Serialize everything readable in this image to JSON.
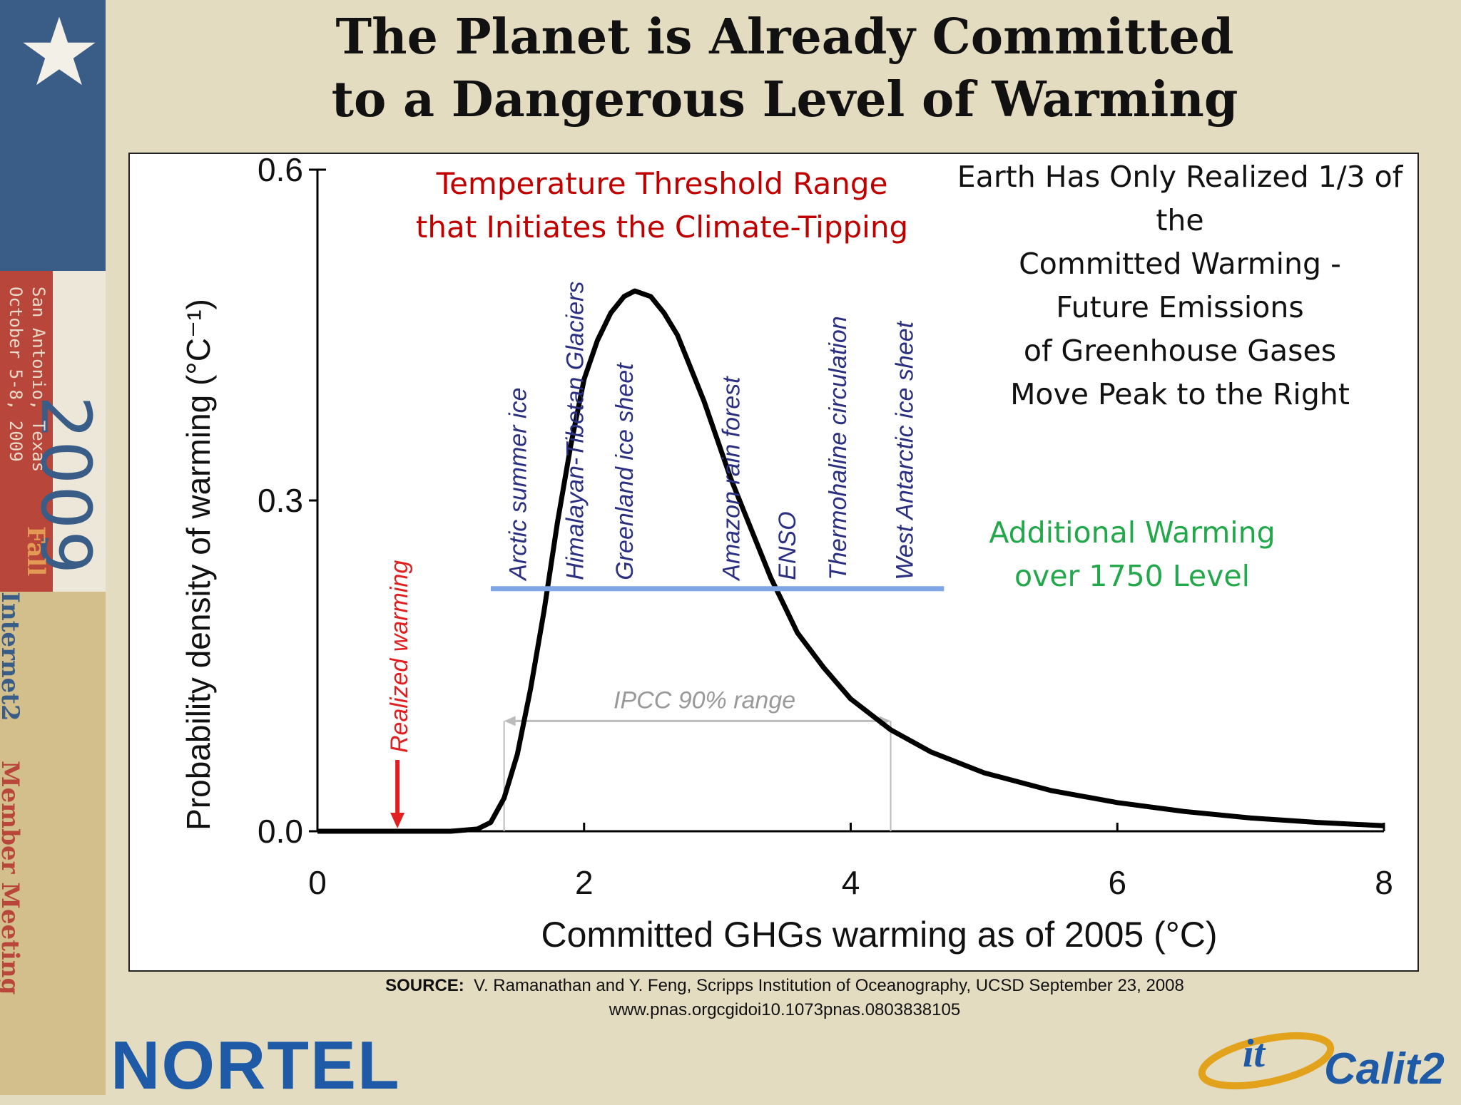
{
  "slide": {
    "title_line1": "The Planet is Already Committed",
    "title_line2": "to a Dangerous Level of Warming",
    "source_label": "SOURCE:",
    "source_text": "V. Ramanathan and Y. Feng, Scripps Institution of Oceanography, UCSD September 23, 2008",
    "source_url": "www.pnas.orgcgidoi10.1073pnas.0803838105",
    "logo_left": "NORTEL",
    "logo_right_it": "it",
    "logo_right": "Calit2"
  },
  "banner": {
    "year": "2009",
    "season": "Fall",
    "city": "San Antonio, Texas",
    "dates": "October 5-8, 2009",
    "meeting_part1": "Internet2",
    "meeting_part2": "Member Meeting",
    "colors": {
      "blue": "#3a5d87",
      "red": "#b8463b",
      "tan": "#d3bf8c"
    }
  },
  "chart_data": {
    "type": "line",
    "title": "",
    "xlabel": "Committed GHGs warming as of 2005 (°C)",
    "ylabel": "Probability density of warming (°C⁻¹)",
    "xlim": [
      0,
      8
    ],
    "ylim": [
      0,
      0.6
    ],
    "x_ticks": [
      0,
      2,
      4,
      6,
      8
    ],
    "y_ticks": [
      0.0,
      0.3,
      0.6
    ],
    "x_tick_labels": [
      "0",
      "2",
      "4",
      "6",
      "8"
    ],
    "y_tick_labels": [
      "0.0",
      "0.3",
      "0.6"
    ],
    "grid": false,
    "series": [
      {
        "color": "#000000",
        "x": [
          0,
          0.6,
          1.0,
          1.2,
          1.3,
          1.4,
          1.5,
          1.6,
          1.7,
          1.8,
          1.9,
          2.0,
          2.1,
          2.2,
          2.3,
          2.38,
          2.5,
          2.6,
          2.7,
          2.8,
          2.9,
          3.0,
          3.1,
          3.2,
          3.3,
          3.4,
          3.5,
          3.6,
          3.8,
          4.0,
          4.3,
          4.6,
          5.0,
          5.5,
          6.0,
          6.5,
          7.0,
          7.5,
          8.0
        ],
        "y": [
          0,
          0,
          0,
          0.002,
          0.008,
          0.03,
          0.07,
          0.13,
          0.2,
          0.28,
          0.35,
          0.41,
          0.445,
          0.47,
          0.485,
          0.49,
          0.485,
          0.47,
          0.45,
          0.42,
          0.39,
          0.355,
          0.32,
          0.29,
          0.26,
          0.23,
          0.205,
          0.18,
          0.148,
          0.12,
          0.092,
          0.072,
          0.053,
          0.037,
          0.026,
          0.018,
          0.012,
          0.008,
          0.005
        ]
      }
    ],
    "realized_warming": {
      "x": 0.6,
      "label": "Realized warming",
      "color": "#e02020"
    },
    "ipcc_range": {
      "x_start": 1.4,
      "x_end": 4.3,
      "y": 0.1,
      "label": "IPCC 90% range"
    },
    "threshold_line": {
      "x_start": 1.3,
      "x_end": 4.7,
      "y": 0.22,
      "color": "#7fa6e6"
    },
    "tipping_elements": [
      {
        "label": "Arctic summer ice",
        "x": 1.5
      },
      {
        "label": "Himalayan-Tibetan Glaciers",
        "x": 1.93
      },
      {
        "label": "Greenland ice sheet",
        "x": 2.3
      },
      {
        "label": "Amazon rain forest",
        "x": 3.1
      },
      {
        "label": "ENSO",
        "x": 3.52
      },
      {
        "label": "Thermohaline circulation",
        "x": 3.9
      },
      {
        "label": "West Antarctic ice sheet",
        "x": 4.4
      }
    ],
    "annotations": {
      "threshold_line1": "Temperature Threshold Range",
      "threshold_line2": "that Initiates the Climate-Tipping",
      "threshold_color": "#c00000",
      "realized_lines": [
        "Earth Has Only Realized 1/3 of",
        "the",
        "Committed Warming -",
        "Future Emissions",
        "of Greenhouse Gases",
        "Move Peak to the Right"
      ],
      "additional_line1": "Additional Warming",
      "additional_line2": "over 1750 Level",
      "additional_color": "#22a84a"
    }
  }
}
